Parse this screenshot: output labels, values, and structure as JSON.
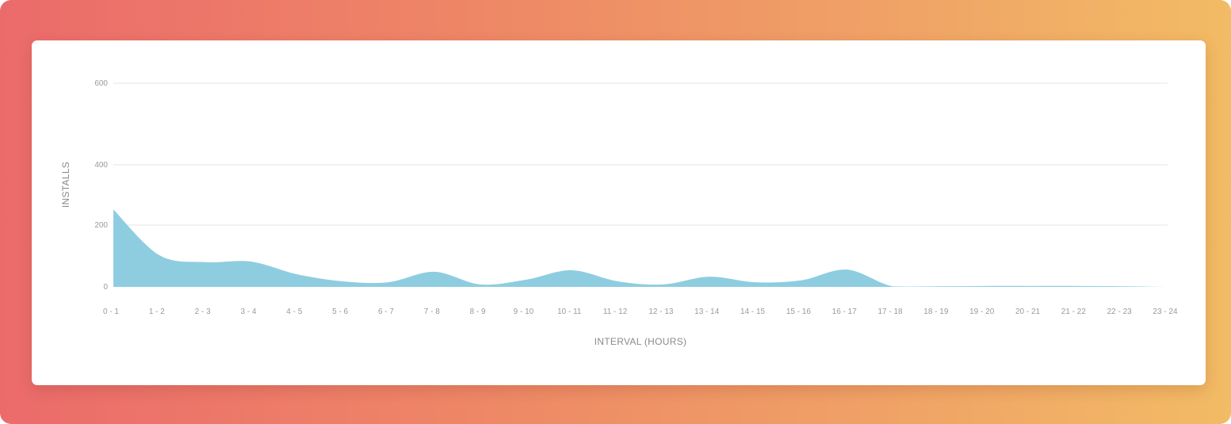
{
  "colors": {
    "gradient_start": "#eb6b6b",
    "gradient_end": "#f2bb65",
    "area_fill": "#8ecde0",
    "grid": "#e4e4e4",
    "text": "#9a9a9a"
  },
  "chart_data": {
    "type": "area",
    "title": "",
    "xlabel": "INTERVAL (HOURS)",
    "ylabel": "INSTALLS",
    "ylim": [
      0,
      600
    ],
    "y_ticks": [
      0,
      200,
      400,
      600
    ],
    "grid": true,
    "legend": null,
    "categories": [
      "0 - 1",
      "1 - 2",
      "2 - 3",
      "3 - 4",
      "4 - 5",
      "5 - 6",
      "6 - 7",
      "7 - 8",
      "8 - 9",
      "9 - 10",
      "10 - 11",
      "11 - 12",
      "12 - 13",
      "13 - 14",
      "14 - 15",
      "15 - 16",
      "16 - 17",
      "17 - 18",
      "18 - 19",
      "19 - 20",
      "20 - 21",
      "21 - 22",
      "22 - 23",
      "23 - 24"
    ],
    "series": [
      {
        "name": "Installs",
        "values": [
          252,
          103,
          80,
          82,
          41,
          18,
          15,
          49,
          8,
          23,
          54,
          18,
          8,
          33,
          15,
          21,
          56,
          2,
          2,
          3,
          3,
          3,
          2,
          0
        ]
      }
    ]
  }
}
